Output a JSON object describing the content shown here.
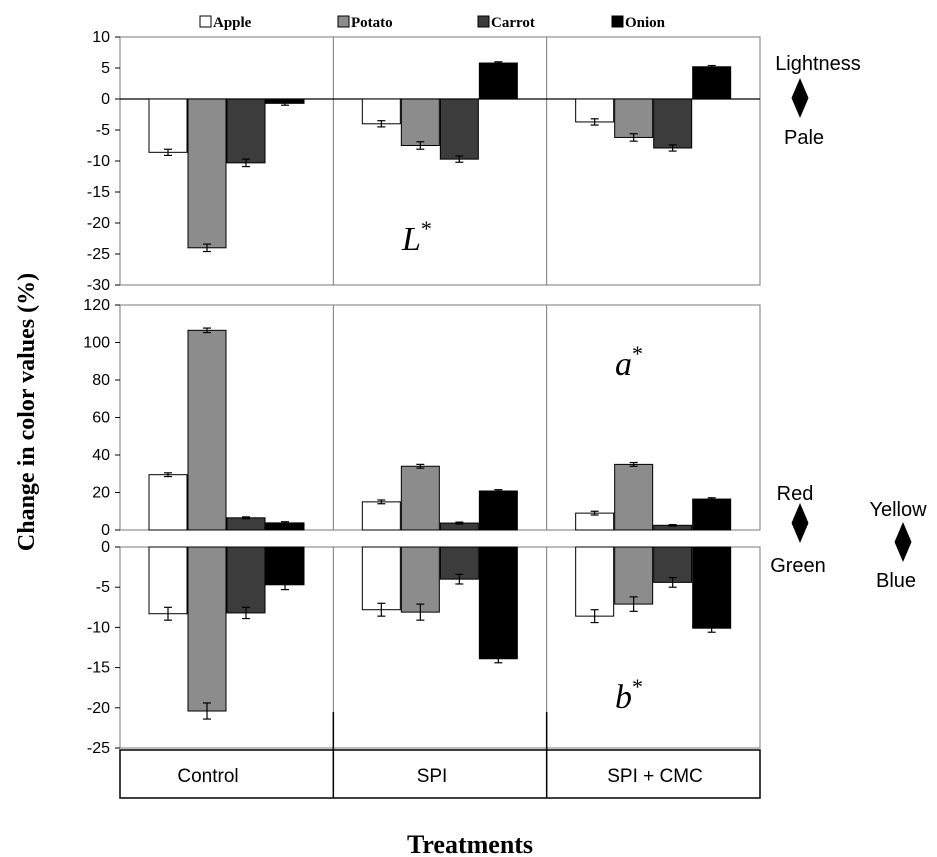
{
  "chart_data": {
    "type": "bar",
    "xlabel": "Treatments",
    "ylabel": "Change in color values (%)",
    "categories": [
      "Control",
      "SPI",
      "SPI +  CMC"
    ],
    "legend": [
      "Apple",
      "Potato",
      "Carrot",
      "Onion"
    ],
    "legend_placement": "top",
    "series_colors": {
      "Apple": "#ffffff",
      "Potato": "#8c8c8c",
      "Carrot": "#3c3c3c",
      "Onion": "#000000"
    },
    "panels": [
      {
        "label": "L",
        "label_sup": "*",
        "ylim": [
          -30,
          10
        ],
        "yticks": [
          10,
          5,
          0,
          -5,
          -10,
          -15,
          -20,
          -25,
          -30
        ],
        "side_top": "Lightness",
        "side_bottom": "Pale",
        "series": [
          {
            "name": "Apple",
            "values": [
              -8.6,
              -4.0,
              -3.7
            ],
            "errors": [
              0.5,
              0.5,
              0.5
            ]
          },
          {
            "name": "Potato",
            "values": [
              -24.0,
              -7.5,
              -6.2
            ],
            "errors": [
              0.6,
              0.6,
              0.6
            ]
          },
          {
            "name": "Carrot",
            "values": [
              -10.3,
              -9.7,
              -7.9
            ],
            "errors": [
              0.6,
              0.5,
              0.5
            ]
          },
          {
            "name": "Onion",
            "values": [
              -0.7,
              5.8,
              5.2
            ],
            "errors": [
              0.3,
              0.2,
              0.2
            ]
          }
        ]
      },
      {
        "label": "a",
        "label_sup": "*",
        "ylim": [
          0,
          120
        ],
        "yticks": [
          120,
          100,
          80,
          60,
          40,
          20,
          0
        ],
        "side_top": "Red",
        "side_bottom": "Green",
        "series": [
          {
            "name": "Apple",
            "values": [
              29.5,
              15.0,
              9.0
            ],
            "errors": [
              1.0,
              1.0,
              1.0
            ]
          },
          {
            "name": "Potato",
            "values": [
              106.5,
              34.0,
              35.0
            ],
            "errors": [
              1.2,
              1.0,
              1.0
            ]
          },
          {
            "name": "Carrot",
            "values": [
              6.5,
              3.7,
              2.5
            ],
            "errors": [
              0.5,
              0.5,
              0.4
            ]
          },
          {
            "name": "Onion",
            "values": [
              3.8,
              20.8,
              16.5
            ],
            "errors": [
              0.6,
              0.7,
              0.7
            ]
          }
        ]
      },
      {
        "label": "b",
        "label_sup": "*",
        "ylim": [
          -25,
          0
        ],
        "yticks": [
          0,
          -5,
          -10,
          -15,
          -20,
          -25
        ],
        "side_top": "Yellow",
        "side_bottom": "Blue",
        "series": [
          {
            "name": "Apple",
            "values": [
              -8.3,
              -7.8,
              -8.6
            ],
            "errors": [
              0.8,
              0.8,
              0.8
            ]
          },
          {
            "name": "Potato",
            "values": [
              -20.4,
              -8.1,
              -7.1
            ],
            "errors": [
              1.0,
              1.0,
              0.9
            ]
          },
          {
            "name": "Carrot",
            "values": [
              -8.2,
              -4.0,
              -4.4
            ],
            "errors": [
              0.7,
              0.6,
              0.6
            ]
          },
          {
            "name": "Onion",
            "values": [
              -4.7,
              -13.9,
              -10.1
            ],
            "errors": [
              0.6,
              0.5,
              0.5
            ]
          }
        ]
      }
    ]
  }
}
